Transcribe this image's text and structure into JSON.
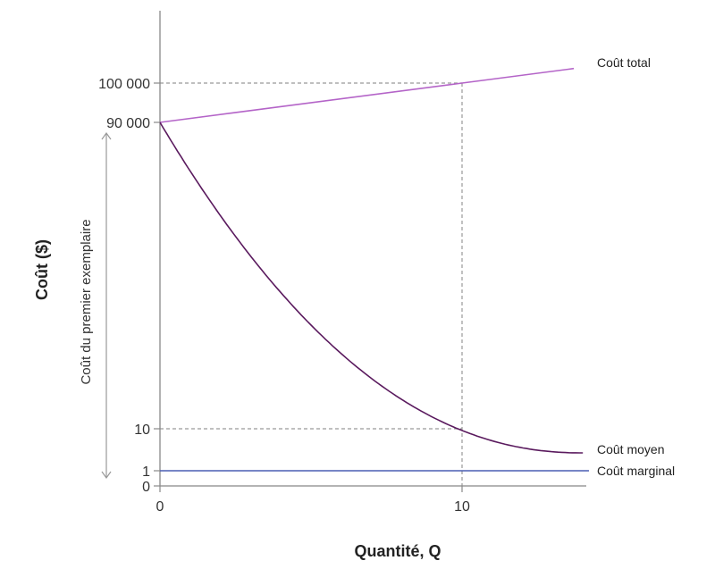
{
  "chart_data": {
    "type": "line",
    "title": "",
    "xlabel": "Quantité, Q",
    "ylabel": "Coût ($)",
    "x_ticks": [
      {
        "value": 0,
        "label": "0"
      },
      {
        "value": 10,
        "label": "10"
      }
    ],
    "y_ticks": [
      {
        "value": 0,
        "label": "0"
      },
      {
        "value": 1,
        "label": "1"
      },
      {
        "value": 10,
        "label": "10"
      },
      {
        "value": 90000,
        "label": "90 000"
      },
      {
        "value": 100000,
        "label": "100 000"
      }
    ],
    "series": [
      {
        "name": "Coût total",
        "color": "#b464c8",
        "x": [
          0,
          10,
          13.7
        ],
        "y": [
          90000,
          100000,
          103700
        ]
      },
      {
        "name": "Coût moyen",
        "color": "#5a1a5e",
        "x": [
          0,
          10,
          14
        ],
        "y": [
          90000,
          10,
          1
        ]
      },
      {
        "name": "Coût marginal",
        "color": "#4a5fb4",
        "x": [
          0,
          14.2
        ],
        "y": [
          1,
          1
        ]
      }
    ],
    "reference_lines": [
      {
        "y": 100000,
        "x_end": 10,
        "style": "dashed"
      },
      {
        "y": 10,
        "x_end": 10,
        "style": "dashed"
      },
      {
        "x": 10,
        "style": "dashed"
      }
    ],
    "annotations": [
      {
        "label": "Coût du premier exemplaire",
        "y_from": 1,
        "y_to": 90000
      }
    ],
    "xlim": [
      0,
      14
    ],
    "grid": false,
    "legend": "none"
  }
}
